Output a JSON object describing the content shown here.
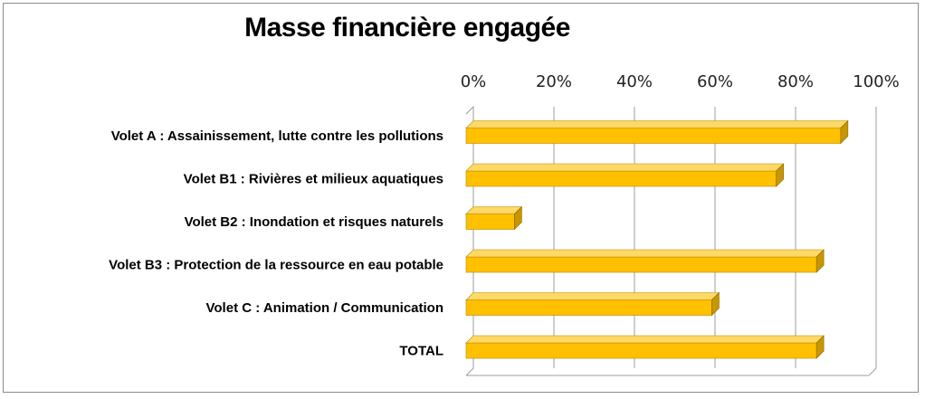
{
  "chart_data": {
    "type": "bar",
    "orientation": "horizontal",
    "title": "Masse financière engagée",
    "categories": [
      "Volet A : Assainissement, lutte contre les pollutions",
      "Volet B1 : Rivières et milieux aquatiques",
      "Volet B2 : Inondation et risques naturels",
      "Volet B3 : Protection de la ressource en eau potable",
      "Volet C : Animation / Communication",
      "TOTAL"
    ],
    "values": [
      93,
      77,
      12,
      87,
      61,
      87
    ],
    "unit": "%",
    "xlim": [
      0,
      100
    ],
    "xticks": [
      "0%",
      "20%",
      "40%",
      "60%",
      "80%",
      "100%"
    ],
    "xaxis_position": "top",
    "grid": true,
    "legend": "none",
    "style": "3d",
    "colors": {
      "bar_front": "#ffc000",
      "bar_top": "#ffd966",
      "bar_side": "#c89600",
      "grid": "#9e9e9e"
    }
  }
}
